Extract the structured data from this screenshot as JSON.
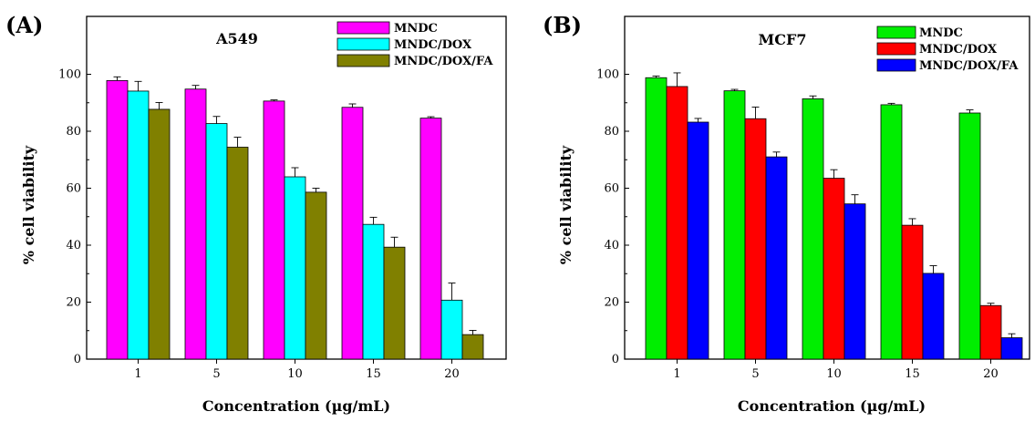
{
  "chart_data": [
    {
      "panel": "(A)",
      "type": "bar",
      "title": "A549",
      "xlabel": "Concentration (µg/mL)",
      "ylabel": "% cell viability",
      "ylim": [
        0,
        110
      ],
      "yticks": [
        0,
        20,
        40,
        60,
        80,
        100
      ],
      "categories": [
        "1",
        "5",
        "10",
        "15",
        "20"
      ],
      "series": [
        {
          "name": "MNDC",
          "color": "#ff00ff",
          "values": [
            97.8,
            94.8,
            90.6,
            88.4,
            84.6
          ],
          "errors": [
            1.3,
            1.3,
            0.4,
            1.2,
            0.5
          ]
        },
        {
          "name": "MNDC/DOX",
          "color": "#00ffff",
          "values": [
            94.1,
            82.7,
            64.0,
            47.3,
            20.7
          ],
          "errors": [
            3.4,
            2.5,
            3.2,
            2.5,
            6.0
          ]
        },
        {
          "name": "MNDC/DOX/FA",
          "color": "#808000",
          "values": [
            87.7,
            74.4,
            58.6,
            39.3,
            8.6
          ],
          "errors": [
            2.4,
            3.5,
            1.4,
            3.5,
            1.5
          ]
        }
      ],
      "legend_position": "top-right",
      "error_bars": true,
      "grid": false
    },
    {
      "panel": "(B)",
      "type": "bar",
      "title": "MCF7",
      "xlabel": "Concentration (µg/mL)",
      "ylabel": "% cell viability",
      "ylim": [
        0,
        110
      ],
      "yticks": [
        0,
        20,
        40,
        60,
        80,
        100
      ],
      "categories": [
        "1",
        "5",
        "10",
        "15",
        "20"
      ],
      "series": [
        {
          "name": "MNDC",
          "color": "#00ee00",
          "values": [
            98.8,
            94.2,
            91.4,
            89.3,
            86.4
          ],
          "errors": [
            0.6,
            0.5,
            1.0,
            0.5,
            1.1
          ]
        },
        {
          "name": "MNDC/DOX",
          "color": "#ff0000",
          "values": [
            95.7,
            84.4,
            63.5,
            47.0,
            18.8
          ],
          "errors": [
            4.8,
            4.1,
            3.0,
            2.3,
            0.8
          ]
        },
        {
          "name": "MNDC/DOX/FA",
          "color": "#0000ff",
          "values": [
            83.2,
            71.0,
            54.5,
            30.1,
            7.5
          ],
          "errors": [
            1.3,
            1.7,
            3.2,
            2.7,
            1.4
          ]
        }
      ],
      "legend_position": "top-right",
      "error_bars": true,
      "grid": false
    }
  ]
}
